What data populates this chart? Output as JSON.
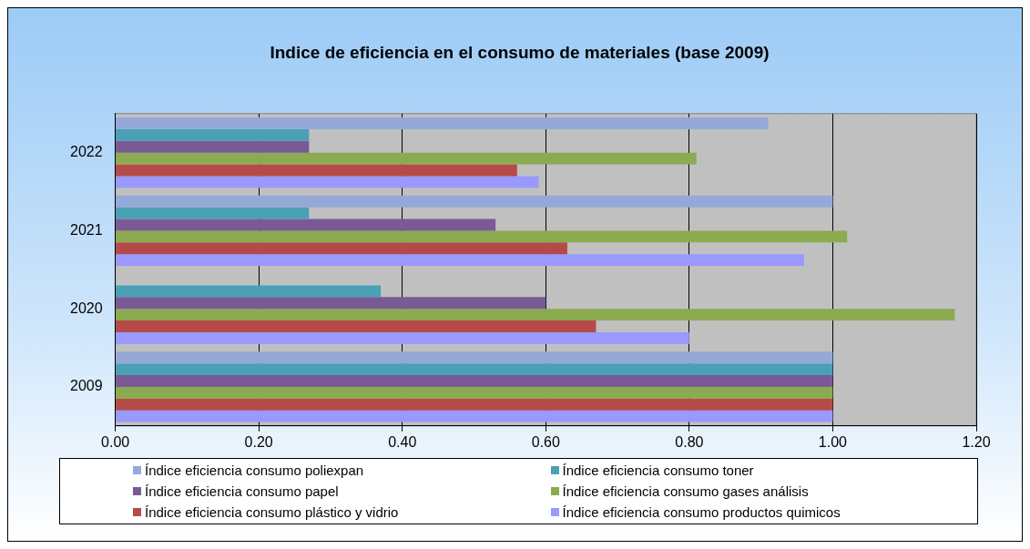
{
  "chart_data": {
    "type": "bar",
    "orientation": "horizontal",
    "title": "Indice de eficiencia en el consumo de materiales (base 2009)",
    "categories": [
      "2022",
      "2021",
      "2020",
      "2009"
    ],
    "series": [
      {
        "name": "Índice eficiencia consumo poliexpan",
        "color": "#95a9d9",
        "values": [
          0.91,
          1.0,
          null,
          1.0
        ]
      },
      {
        "name": "Índice eficiencia consumo toner",
        "color": "#4aa0b5",
        "values": [
          0.27,
          0.27,
          0.37,
          1.0
        ]
      },
      {
        "name": "Índice eficiencia consumo papel",
        "color": "#7a5a96",
        "values": [
          0.27,
          0.53,
          0.6,
          1.0
        ]
      },
      {
        "name": "Índice eficiencia consumo gases análisis",
        "color": "#8caa4f",
        "values": [
          0.81,
          1.02,
          1.17,
          1.0
        ]
      },
      {
        "name": "Índice eficiencia consumo plástico y vidrio",
        "color": "#b44b48",
        "values": [
          0.56,
          0.63,
          0.67,
          1.0
        ]
      },
      {
        "name": "Índice eficiencia consumo productos quimicos",
        "color": "#9999ff",
        "values": [
          0.59,
          0.96,
          0.8,
          1.0
        ]
      }
    ],
    "xlim": [
      0,
      1.2
    ],
    "xticks": [
      {
        "value": 0,
        "label": "0.00"
      },
      {
        "value": 0.2,
        "label": "0.20"
      },
      {
        "value": 0.4,
        "label": "0.40"
      },
      {
        "value": 0.6,
        "label": "0.60"
      },
      {
        "value": 0.8,
        "label": "0.80"
      },
      {
        "value": 1.0,
        "label": "1.00"
      },
      {
        "value": 1.2,
        "label": "1.20"
      }
    ],
    "grid": "x",
    "legend": "bottom"
  }
}
